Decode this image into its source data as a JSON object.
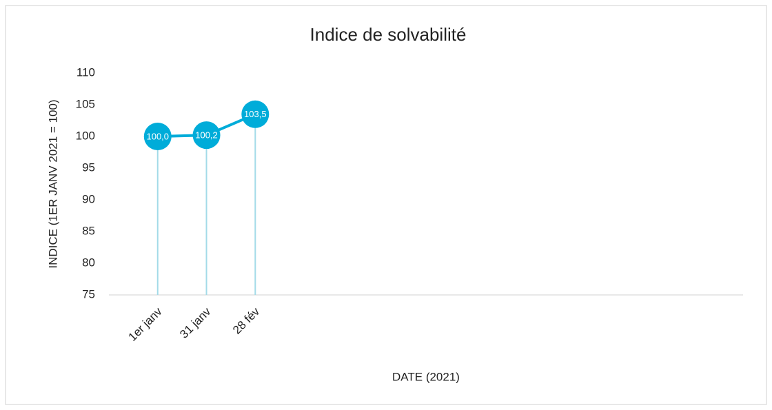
{
  "chart_data": {
    "type": "line",
    "title": "Indice de solvabilité",
    "x_label": "DATE (2021)",
    "y_label": "INDICE (1ER JANV 2021 = 100)",
    "categories": [
      "1er janv",
      "31 janv",
      "28 fév"
    ],
    "values": [
      100.0,
      100.2,
      103.5
    ],
    "value_labels": [
      "100,0",
      "100,2",
      "103,5"
    ],
    "color": "#00acd9",
    "drop_line_color": "#a3dbe8",
    "ylim": [
      75,
      110
    ],
    "yticks": [
      75,
      80,
      85,
      90,
      95,
      100,
      105,
      110
    ]
  }
}
